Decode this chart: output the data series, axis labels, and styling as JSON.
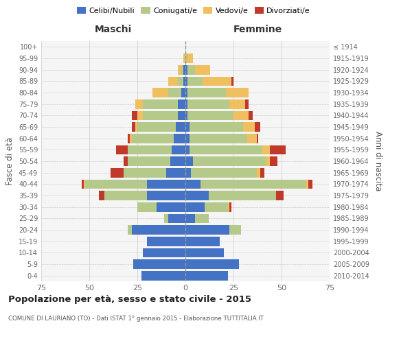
{
  "age_groups": [
    "0-4",
    "5-9",
    "10-14",
    "15-19",
    "20-24",
    "25-29",
    "30-34",
    "35-39",
    "40-44",
    "45-49",
    "50-54",
    "55-59",
    "60-64",
    "65-69",
    "70-74",
    "75-79",
    "80-84",
    "85-89",
    "90-94",
    "95-99",
    "100+"
  ],
  "birth_years": [
    "2010-2014",
    "2005-2009",
    "2000-2004",
    "1995-1999",
    "1990-1994",
    "1985-1989",
    "1980-1984",
    "1975-1979",
    "1970-1974",
    "1965-1969",
    "1960-1964",
    "1955-1959",
    "1950-1954",
    "1945-1949",
    "1940-1944",
    "1935-1939",
    "1930-1934",
    "1925-1929",
    "1920-1924",
    "1915-1919",
    "≤ 1914"
  ],
  "colors": {
    "celibe": "#4472C4",
    "coniugato": "#b5c98a",
    "vedovo": "#f0c060",
    "divorziato": "#c0392b"
  },
  "maschi": {
    "celibe": [
      23,
      27,
      22,
      20,
      28,
      9,
      15,
      20,
      20,
      10,
      8,
      7,
      6,
      5,
      4,
      4,
      2,
      1,
      1,
      0,
      0
    ],
    "coniugato": [
      0,
      0,
      0,
      0,
      2,
      2,
      10,
      22,
      32,
      22,
      22,
      23,
      22,
      20,
      18,
      18,
      7,
      3,
      1,
      0,
      0
    ],
    "vedovo": [
      0,
      0,
      0,
      0,
      0,
      0,
      0,
      0,
      1,
      0,
      0,
      0,
      1,
      1,
      3,
      4,
      8,
      5,
      2,
      1,
      0
    ],
    "divorziato": [
      0,
      0,
      0,
      0,
      0,
      0,
      0,
      3,
      1,
      7,
      2,
      6,
      1,
      2,
      3,
      0,
      0,
      0,
      0,
      0,
      0
    ]
  },
  "femmine": {
    "nubile": [
      22,
      28,
      20,
      18,
      23,
      5,
      10,
      12,
      8,
      3,
      4,
      2,
      2,
      2,
      1,
      1,
      1,
      1,
      1,
      0,
      0
    ],
    "coniugata": [
      0,
      0,
      0,
      0,
      6,
      7,
      12,
      35,
      55,
      34,
      38,
      38,
      30,
      28,
      24,
      22,
      20,
      8,
      4,
      1,
      0
    ],
    "vedova": [
      0,
      0,
      0,
      0,
      0,
      0,
      1,
      0,
      1,
      2,
      2,
      4,
      5,
      6,
      8,
      8,
      12,
      15,
      8,
      3,
      0
    ],
    "divorziata": [
      0,
      0,
      0,
      0,
      0,
      0,
      1,
      4,
      2,
      2,
      4,
      8,
      1,
      3,
      2,
      2,
      0,
      1,
      0,
      0,
      0
    ]
  },
  "xlim": 75,
  "title": "Popolazione per età, sesso e stato civile - 2015",
  "subtitle": "COMUNE DI LAURIANO (TO) - Dati ISTAT 1° gennaio 2015 - Elaborazione TUTTITALIA.IT",
  "xlabel_left": "Maschi",
  "xlabel_right": "Femmine",
  "ylabel_left": "Fasce di età",
  "ylabel_right": "Anni di nascita",
  "legend_labels": [
    "Celibi/Nubili",
    "Coniugati/e",
    "Vedovi/e",
    "Divorziati/e"
  ],
  "bg_color": "#f5f5f5",
  "grid_color": "#cccccc"
}
